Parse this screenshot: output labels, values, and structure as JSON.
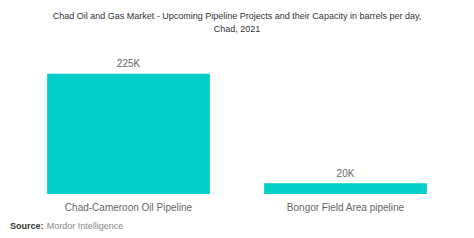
{
  "chart_data": {
    "type": "bar",
    "title": "Chad Oil and Gas Market - Upcoming Pipeline Projects and their Capacity in barrels per day,\nChad, 2021",
    "categories": [
      "Chad-Cameroon Oil Pipeline",
      "Bongor Field Area pipeline"
    ],
    "values": [
      225000,
      20000
    ],
    "value_labels": [
      "225K",
      "20K"
    ],
    "data_labels": true,
    "color": "#00CEC8",
    "ylim": [
      0,
      265500
    ],
    "tick_labels": "x",
    "grid": false,
    "annotations": [
      "Source:",
      "Mordor Intelligence"
    ]
  }
}
